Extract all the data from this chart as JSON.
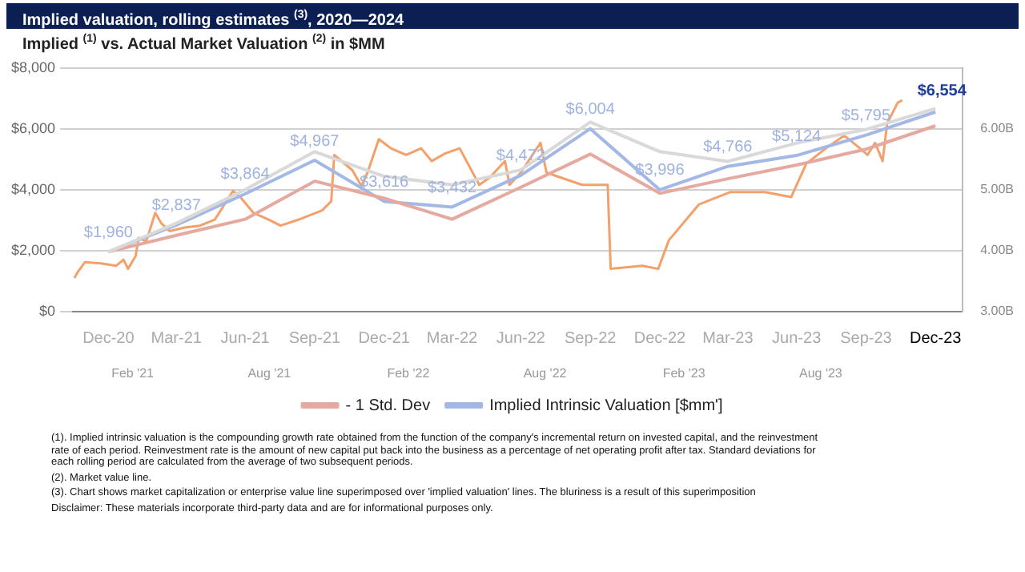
{
  "chart_data": {
    "type": "line",
    "title": "Implied valuation, rolling estimates $^{(3)}$, 2020—2024",
    "subtitle": "Implied $^{(1)}$ vs. Actual Market Valuation $^{(2)}$ in $MM",
    "x": [
      "2020-12-31",
      "2021-03-31",
      "2021-06-30",
      "2021-09-30",
      "2021-12-31",
      "2022-03-31",
      "2022-06-30",
      "2022-09-30",
      "2022-12-31",
      "2023-03-31",
      "2023-06-30",
      "2023-09-30",
      "2023-12-31"
    ],
    "xlim": [
      "2020-11-14",
      "2024-02-05"
    ],
    "xticks": [
      {
        "value": "2020-12-31",
        "label": "Dec-20"
      },
      {
        "value": "2021-03-31",
        "label": "Mar-21"
      },
      {
        "value": "2021-06-30",
        "label": "Jun-21"
      },
      {
        "value": "2021-09-30",
        "label": "Sep-21"
      },
      {
        "value": "2021-12-31",
        "label": "Dec-21"
      },
      {
        "value": "2022-03-31",
        "label": "Mar-22"
      },
      {
        "value": "2022-06-30",
        "label": "Jun-22"
      },
      {
        "value": "2022-09-30",
        "label": "Sep-22"
      },
      {
        "value": "2022-12-31",
        "label": "Dec-22"
      },
      {
        "value": "2023-03-31",
        "label": "Mar-23"
      },
      {
        "value": "2023-06-30",
        "label": "Jun-23"
      },
      {
        "value": "2023-09-30",
        "label": "Sep-23"
      },
      {
        "value": "2023-12-31",
        "label": "Dec-23"
      }
    ],
    "ylim": [
      0,
      8000
    ],
    "yticks": [
      {
        "value": 0,
        "label": "$0"
      },
      {
        "value": 2000,
        "label": "$2,000"
      },
      {
        "value": 4000,
        "label": "$4,000"
      },
      {
        "value": 6000,
        "label": "$6,000"
      },
      {
        "value": 8000,
        "label": "$8,000"
      }
    ],
    "y2lim": [
      3,
      7
    ],
    "y2ticks": [
      {
        "value": 3,
        "label": "3.00B"
      },
      {
        "value": 4,
        "label": "4.00B"
      },
      {
        "value": 5,
        "label": "5.00B"
      },
      {
        "value": 6,
        "label": "6.00B"
      }
    ],
    "x2lim": [
      "2020-11-14",
      "2024-02-05"
    ],
    "x2ticks": [
      {
        "value": "2021-02-01",
        "label": "Feb '21"
      },
      {
        "value": "2021-08-01",
        "label": "Aug '21"
      },
      {
        "value": "2022-02-01",
        "label": "Feb '22"
      },
      {
        "value": "2022-08-01",
        "label": "Aug '22"
      },
      {
        "value": "2023-02-01",
        "label": "Feb '23"
      },
      {
        "value": "2023-08-01",
        "label": "Aug '23"
      }
    ],
    "grid": "y",
    "legend": "bottom",
    "marker": "none",
    "series": [
      {
        "color": "#d9d9d9",
        "values": [
          1960,
          2900,
          4000,
          5250,
          4440,
          4160,
          4650,
          6220,
          5250,
          4930,
          5530,
          5980,
          6670
        ]
      },
      {
        "name": "- 1 Std. Dev",
        "color": "#e6a99f",
        "values": [
          1960,
          2500,
          3030,
          4280,
          3720,
          3030,
          4080,
          5170,
          3880,
          4360,
          4810,
          5330,
          6100
        ]
      },
      {
        "name": "Implied Intrinsic Valuation [$mm']",
        "color": "#a4b8e6",
        "values": [
          1960,
          2837,
          3864,
          4967,
          3616,
          3432,
          4472,
          6004,
          3996,
          4766,
          5124,
          5795,
          6554
        ],
        "value_labels": [
          "$1,960",
          "$2,837",
          "$3,864",
          "$4,967",
          "$3,616",
          "$3,432",
          "$4,472",
          "$6,004",
          "$3,996",
          "$4,766",
          "$5,124",
          "$5,795",
          "$6,554"
        ]
      },
      {
        "color": "#f4a06a",
        "axis": "y2",
        "x": [
          "2020-11-16",
          "2020-11-20",
          "2020-11-30",
          "2020-12-21",
          "2021-01-10",
          "2021-01-20",
          "2021-01-26",
          "2021-02-05",
          "2021-02-09",
          "2021-02-19",
          "2021-03-03",
          "2021-03-11",
          "2021-03-22",
          "2021-04-11",
          "2021-05-01",
          "2021-05-21",
          "2021-06-14",
          "2021-06-25",
          "2021-07-11",
          "2021-07-31",
          "2021-08-16",
          "2021-09-09",
          "2021-10-10",
          "2021-10-22",
          "2021-10-26",
          "2021-11-19",
          "2021-12-01",
          "2021-12-09",
          "2021-12-24",
          "2022-01-09",
          "2022-01-29",
          "2022-02-18",
          "2022-03-04",
          "2022-03-21",
          "2022-04-10",
          "2022-05-06",
          "2022-05-20",
          "2022-06-09",
          "2022-06-15",
          "2022-06-30",
          "2022-07-26",
          "2022-08-03",
          "2022-09-19",
          "2022-10-23",
          "2022-10-27",
          "2022-12-08",
          "2022-12-29",
          "2023-01-12",
          "2023-02-21",
          "2023-04-03",
          "2023-05-19",
          "2023-06-23",
          "2023-07-13",
          "2023-08-08",
          "2023-09-01",
          "2023-09-22",
          "2023-10-02",
          "2023-10-12",
          "2023-10-22",
          "2023-10-28",
          "2023-11-11",
          "2023-11-17"
        ],
        "values": [
          3.55,
          3.64,
          3.81,
          3.79,
          3.75,
          3.85,
          3.7,
          3.91,
          4.21,
          4.15,
          4.62,
          4.45,
          4.32,
          4.38,
          4.41,
          4.51,
          4.98,
          4.86,
          4.62,
          4.51,
          4.41,
          4.51,
          4.66,
          4.81,
          5.57,
          5.32,
          5.06,
          5.28,
          5.83,
          5.68,
          5.57,
          5.68,
          5.47,
          5.59,
          5.68,
          5.08,
          5.2,
          5.47,
          5.08,
          5.28,
          5.77,
          5.28,
          5.08,
          5.08,
          3.7,
          3.75,
          3.7,
          4.17,
          4.76,
          4.96,
          4.96,
          4.88,
          5.43,
          5.68,
          5.89,
          5.68,
          5.57,
          5.77,
          5.47,
          6.09,
          6.43,
          6.47
        ]
      }
    ],
    "annotations": [
      "(1). Implied intrinsic valuation is the compounding growth rate obtained from the function of the company's incremental return on invested capital, and the reinvestment rate of each period. Reinvestment rate is the amount of new capital put back into the business as a percentage of net operating profit after tax. Standard deviations for each rolling period are calculated from the average of two subsequent periods.",
      "(2). Market value line.",
      "(3). Chart shows market capitalization or enterprise value line superimposed over 'implied valuation' lines. The bluriness is a result of this superimposition",
      "Disclaimer: These materials incorporate third-party data and are for informational purposes only."
    ]
  }
}
